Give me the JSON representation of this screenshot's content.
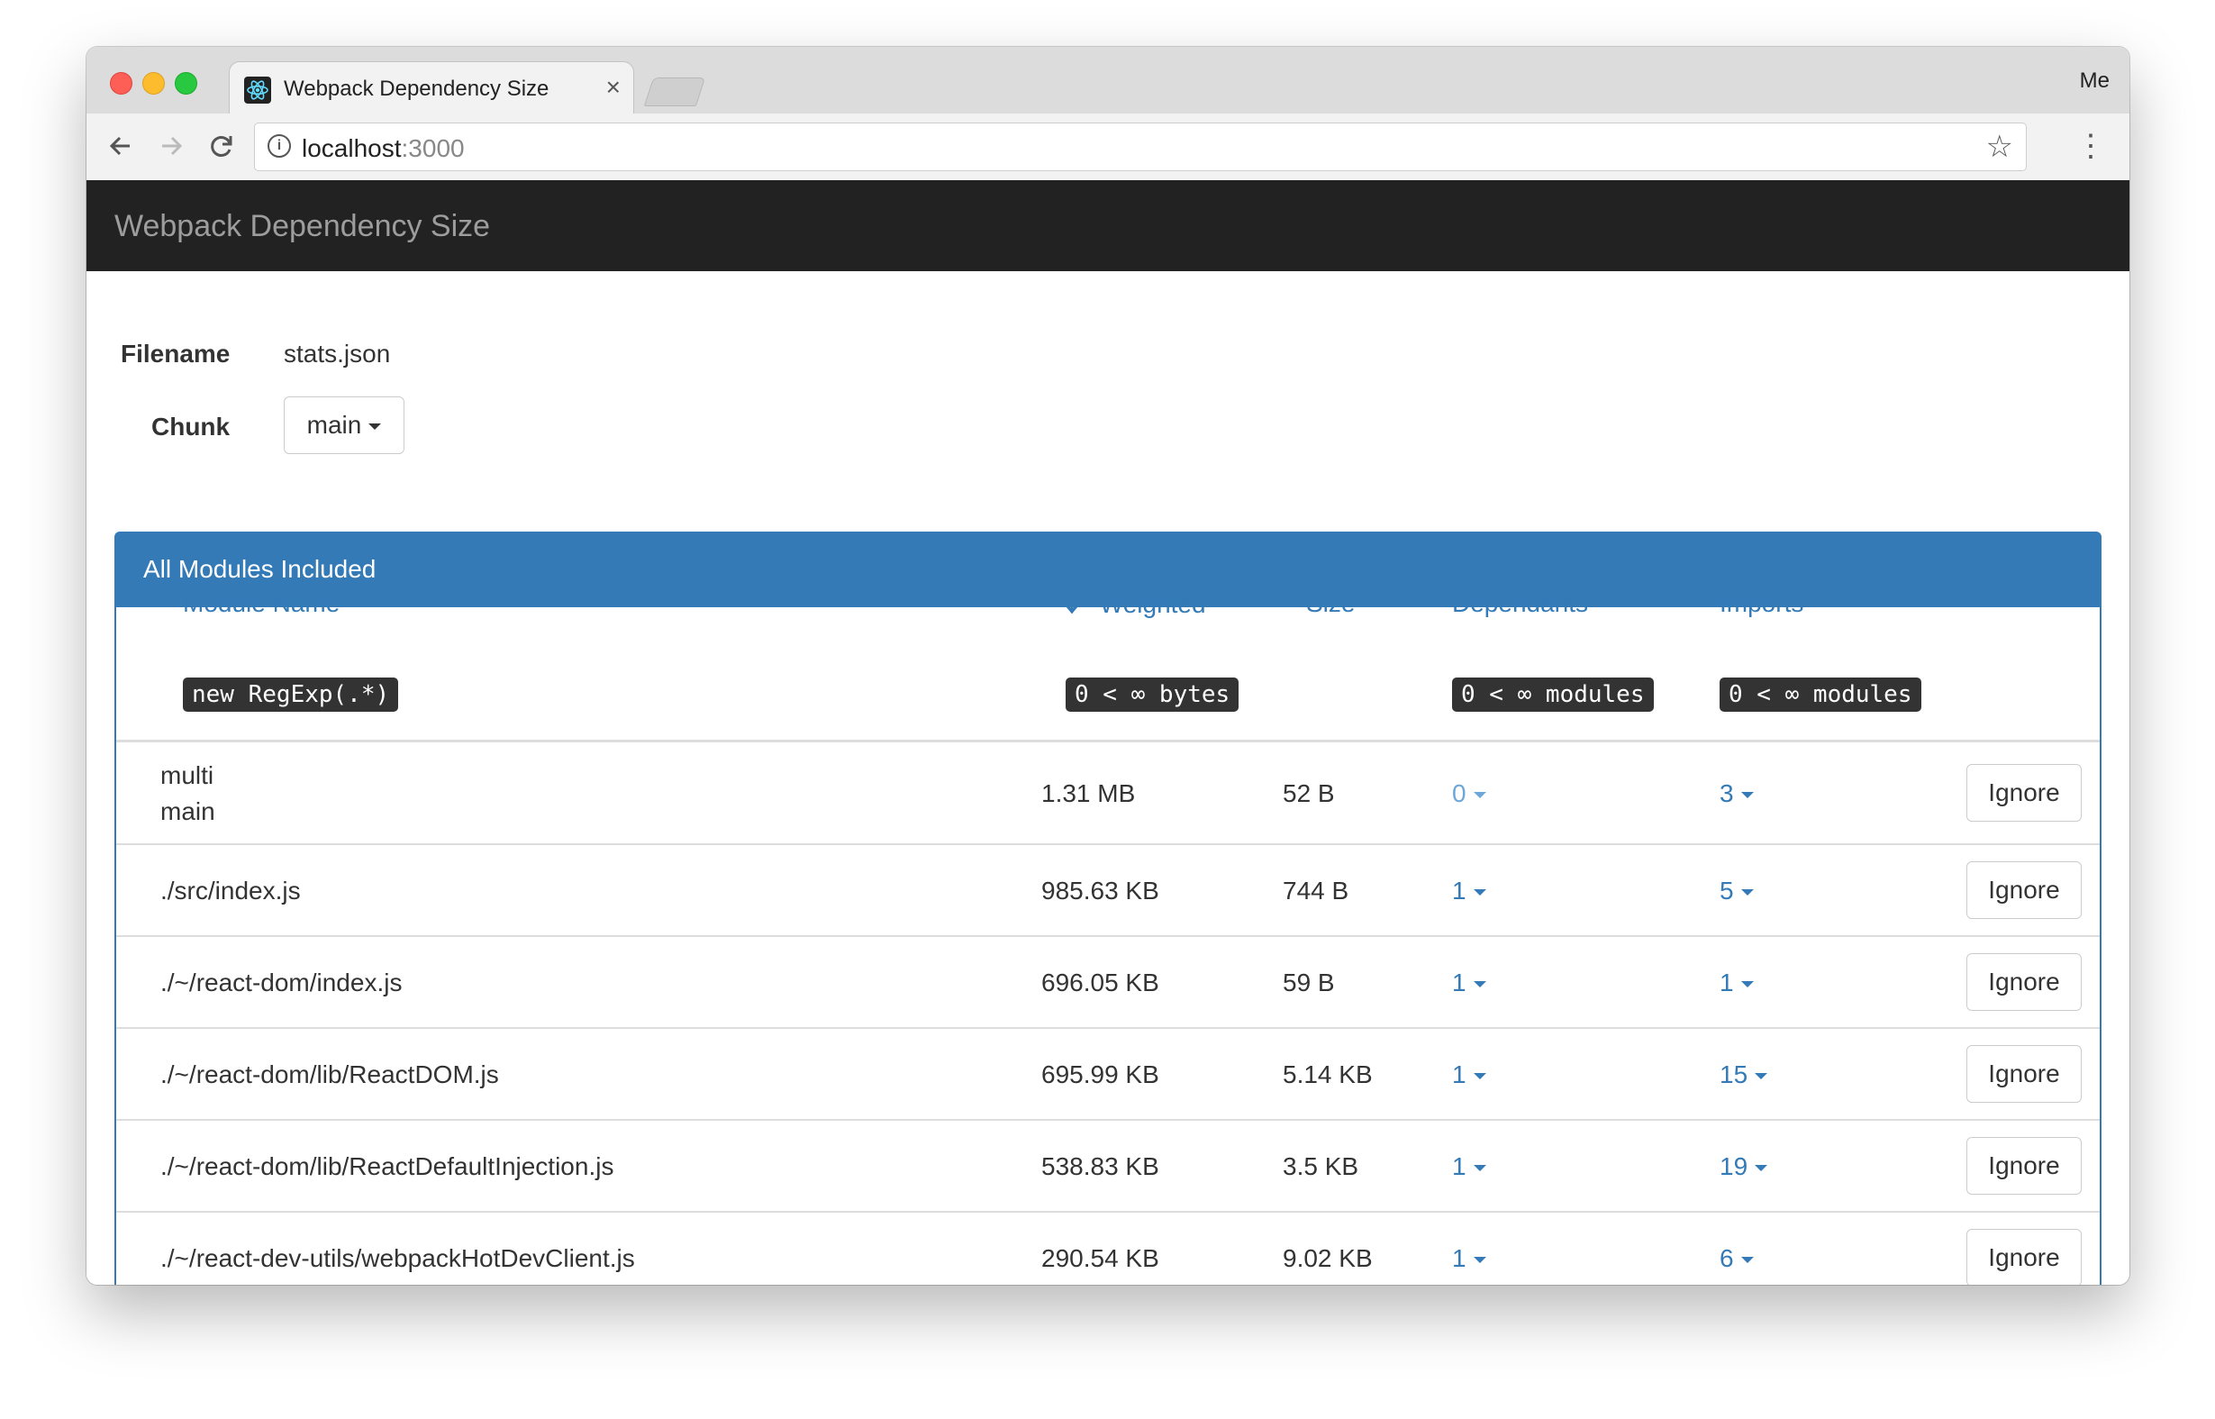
{
  "browser": {
    "tab_title": "Webpack Dependency Size",
    "tab_close": "×",
    "profile": "Me",
    "url_host": "localhost",
    "url_port": ":3000"
  },
  "app": {
    "brand": "Webpack Dependency Size",
    "filename_label": "Filename",
    "filename_value": "stats.json",
    "chunk_label": "Chunk",
    "chunk_value": "main",
    "panel_title": "All Modules Included"
  },
  "table": {
    "headers": {
      "module": "Module Name",
      "weighted": "Weighted",
      "size": "Size",
      "dependants": "Dependants",
      "imports": "Imports"
    },
    "filters": {
      "module": "new RegExp(.*)",
      "weighted": "0 < ∞ bytes",
      "dependants": "0 < ∞ modules",
      "imports": "0 < ∞ modules"
    },
    "rows": [
      {
        "name_line1": "multi",
        "name_line2": "main",
        "weighted": "1.31 MB",
        "size": "52 B",
        "dependants": "0",
        "imports": "3",
        "action": "Ignore"
      },
      {
        "name_line1": "./src/index.js",
        "weighted": "985.63 KB",
        "size": "744 B",
        "dependants": "1",
        "imports": "5",
        "action": "Ignore"
      },
      {
        "name_line1": "./~/react-dom/index.js",
        "weighted": "696.05 KB",
        "size": "59 B",
        "dependants": "1",
        "imports": "1",
        "action": "Ignore"
      },
      {
        "name_line1": "./~/react-dom/lib/ReactDOM.js",
        "weighted": "695.99 KB",
        "size": "5.14 KB",
        "dependants": "1",
        "imports": "15",
        "action": "Ignore"
      },
      {
        "name_line1": "./~/react-dom/lib/ReactDefaultInjection.js",
        "weighted": "538.83 KB",
        "size": "3.5 KB",
        "dependants": "1",
        "imports": "19",
        "action": "Ignore"
      },
      {
        "name_line1": "./~/react-dev-utils/webpackHotDevClient.js",
        "weighted": "290.54 KB",
        "size": "9.02 KB",
        "dependants": "1",
        "imports": "6",
        "action": "Ignore"
      }
    ]
  },
  "colors": {
    "navbar": "#222222",
    "brand_text": "#9d9d9d",
    "panel_primary": "#337ab7",
    "link": "#337ab7"
  },
  "icons": [
    "react-favicon",
    "back-arrow-icon",
    "forward-arrow-icon",
    "reload-icon",
    "info-icon",
    "star-icon",
    "menu-dots-icon",
    "sort-desc-icon",
    "caret-down-icon"
  ]
}
